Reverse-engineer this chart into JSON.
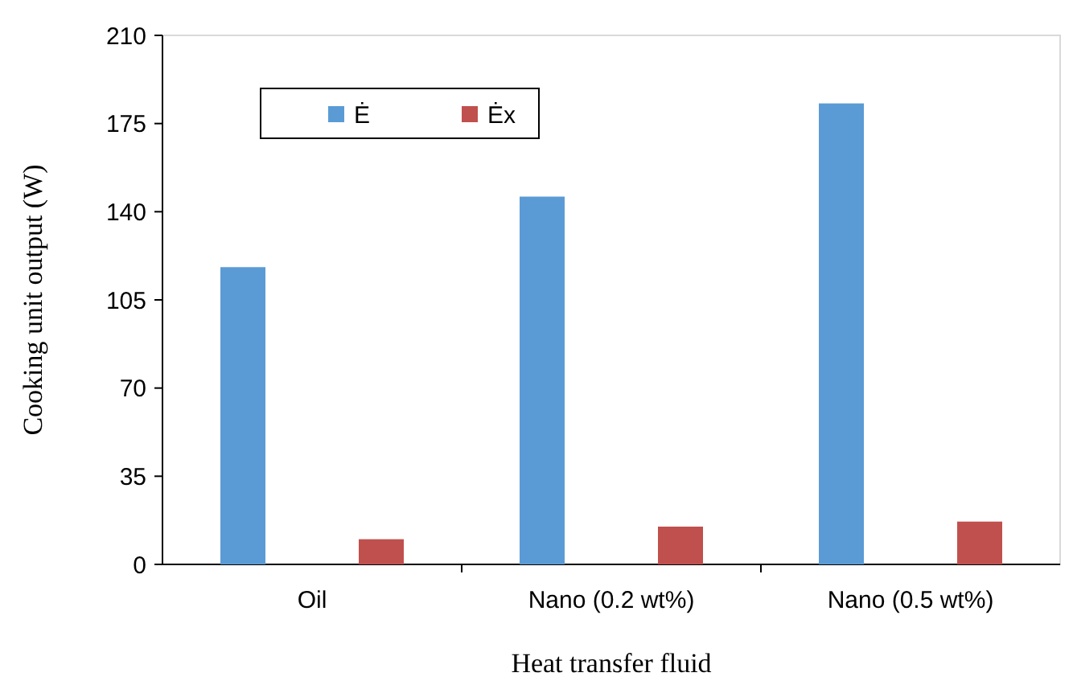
{
  "chart_data": {
    "type": "bar",
    "xlabel": "Heat transfer fluid",
    "ylabel": "Cooking unit output (W)",
    "categories": [
      "Oil",
      "Nano (0.2 wt%)",
      "Nano (0.5 wt%)"
    ],
    "series": [
      {
        "name": "Ė",
        "color": "#5b9bd5",
        "values": [
          118,
          146,
          183
        ]
      },
      {
        "name": "Ėx",
        "color": "#c0504d",
        "values": [
          10,
          15,
          17
        ]
      }
    ],
    "ylim": [
      0,
      210
    ],
    "yticks": [
      0,
      35,
      70,
      105,
      140,
      175,
      210
    ],
    "legend": "top left",
    "grid": false
  }
}
